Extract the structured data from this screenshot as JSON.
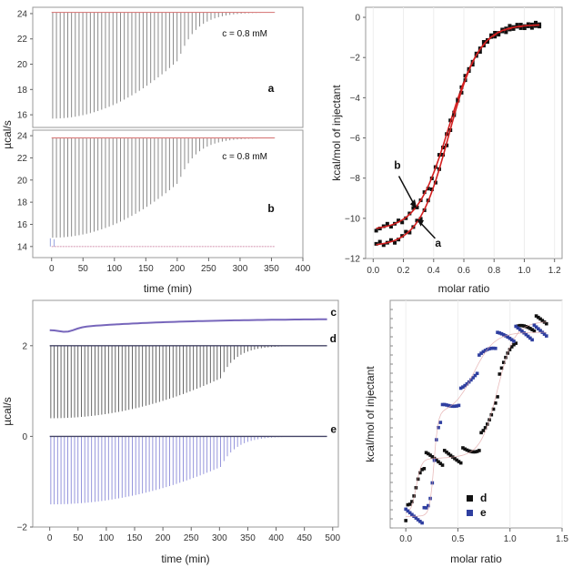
{
  "chart_data": [
    {
      "id": "p1",
      "type": "line",
      "title": "",
      "xlabel": "time (min)",
      "ylabel": "µcal/s",
      "xlim": [
        -30,
        400
      ],
      "x_ticks": [
        "0",
        "50",
        "100",
        "150",
        "200",
        "250",
        "300",
        "350",
        "400"
      ],
      "upper": {
        "ylim": [
          15,
          24.5
        ],
        "y_ticks": [
          "16",
          "18",
          "20",
          "22",
          "24"
        ],
        "label": "a",
        "annotation": "c = 0.8 mM",
        "baseline": 24.1,
        "injections": 60,
        "interval_min": 6,
        "peak_start": 15.7,
        "peak_late": 23.6,
        "transition_min": 200
      },
      "lower": {
        "ylim": [
          13,
          24.5
        ],
        "y_ticks": [
          "14",
          "16",
          "18",
          "20",
          "22",
          "24"
        ],
        "label": "b",
        "annotation": "c = 0.8 mM",
        "baseline": 23.8,
        "reference_baseline": 14.0,
        "injections": 60,
        "interval_min": 6,
        "peak_start": 14.8,
        "peak_late": 23.3,
        "transition_min": 200
      }
    },
    {
      "id": "p2",
      "type": "scatter",
      "xlabel": "molar ratio",
      "ylabel": "kcal/mol of injectant",
      "xlim": [
        -0.05,
        1.25
      ],
      "ylim": [
        -12,
        0.5
      ],
      "x_ticks": [
        "0.0",
        "0.2",
        "0.4",
        "0.6",
        "0.8",
        "1.0",
        "1.2"
      ],
      "y_ticks": [
        "0",
        "−2",
        "−4",
        "−6",
        "−8",
        "−10",
        "−12"
      ],
      "labels": [
        "b",
        "a"
      ],
      "series": [
        {
          "name": "b",
          "color": "#111111",
          "fit_color": "#d42020",
          "x_range": [
            0.02,
            1.1
          ],
          "y_low": -10.6,
          "y_high": -0.35,
          "midpoint": 0.5,
          "width": 0.105
        },
        {
          "name": "a",
          "color": "#111111",
          "fit_color": "#d42020",
          "x_range": [
            0.02,
            1.1
          ],
          "y_low": -11.4,
          "y_high": -0.35,
          "midpoint": 0.5,
          "width": 0.1
        }
      ]
    },
    {
      "id": "p3",
      "type": "line",
      "xlabel": "time (min)",
      "ylabel": "µcal/s",
      "xlim": [
        -30,
        510
      ],
      "ylim": [
        -2,
        3
      ],
      "x_ticks": [
        "0",
        "50",
        "100",
        "150",
        "200",
        "250",
        "300",
        "350",
        "400",
        "450",
        "500"
      ],
      "y_ticks": [
        "2",
        "0",
        "−2"
      ],
      "traces": [
        {
          "name": "c",
          "baseline_start": 2.35,
          "baseline_end": 2.6,
          "color": "#7766bb",
          "injections": 0
        },
        {
          "name": "d",
          "baseline": 2.0,
          "color": "#555555",
          "injections": 80,
          "interval_min": 6,
          "peak_start": 0.4,
          "peak_late": 1.7,
          "transition_min": 300
        },
        {
          "name": "e",
          "baseline": 0.0,
          "color": "#8a8ad8",
          "injections": 80,
          "interval_min": 6,
          "peak_start": -1.5,
          "peak_late": -0.4,
          "transition_min": 300
        }
      ]
    },
    {
      "id": "p4",
      "type": "scatter",
      "xlabel": "molar ratio",
      "ylabel": "kcal/mol of injectant",
      "xlim": [
        -0.15,
        1.5
      ],
      "x_ticks": [
        "0.0",
        "0.5",
        "1.0",
        "1.5"
      ],
      "legend": [
        "d",
        "e"
      ],
      "series": [
        {
          "name": "d",
          "color": "#111111"
        },
        {
          "name": "e",
          "color": "#2f3fa0"
        }
      ]
    }
  ]
}
